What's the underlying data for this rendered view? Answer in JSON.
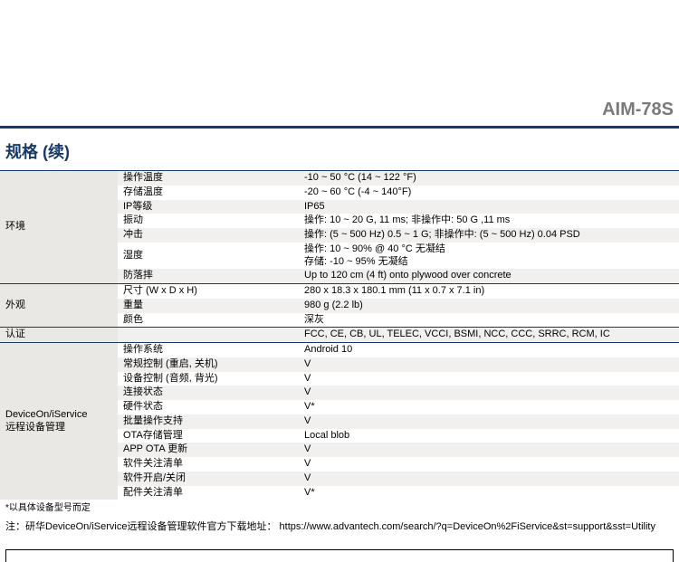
{
  "model_name": "AIM-78S",
  "section_title": "规格 (续)",
  "colors": {
    "accent": "#173a6a",
    "model_text": "#7a7a7a",
    "row_alt_bg": "#f1f0ee",
    "cat_bg": "#e9e8e4"
  },
  "categories": [
    {
      "name": "环境",
      "rows": [
        {
          "label": "操作温度",
          "value": "-10 ~ 50 °C (14 ~ 122 °F)"
        },
        {
          "label": "存储温度",
          "value": "-20 ~ 60 °C (-4 ~ 140°F)"
        },
        {
          "label": "IP等级",
          "value": "IP65"
        },
        {
          "label": "振动",
          "value": "操作: 10 ~ 20 G, 11 ms; 非操作中: 50 G ,11 ms"
        },
        {
          "label": "冲击",
          "value": "操作: (5 ~ 500 Hz) 0.5 ~ 1 G; 非操作中: (5 ~ 500 Hz) 0.04 PSD"
        },
        {
          "label": "湿度",
          "value_lines": [
            "操作: 10 ~ 90% @ 40 °C 无凝结",
            "存储: -10 ~ 95% 无凝结"
          ]
        },
        {
          "label": "防落摔",
          "value": "Up to 120 cm (4 ft) onto plywood over concrete"
        }
      ]
    },
    {
      "name": "外观",
      "rows": [
        {
          "label": "尺寸 (W x D x H)",
          "value": "280 x 18.3 x 180.1 mm (11 x 0.7 x 7.1 in)"
        },
        {
          "label": "重量",
          "value": "980 g (2.2 lb)"
        },
        {
          "label": "颜色",
          "value": "深灰"
        }
      ]
    },
    {
      "name": "认证",
      "rows": [
        {
          "label": "",
          "value": "FCC, CE, CB, UL, TELEC, VCCI, BSMI, NCC, CCC, SRRC, RCM, IC"
        }
      ]
    },
    {
      "name": "DeviceOn/iService\n远程设备管理",
      "rows": [
        {
          "label": "操作系统",
          "value": "Android 10"
        },
        {
          "label": "常规控制 (重启, 关机)",
          "value": "V"
        },
        {
          "label": "设备控制 (音频, 背光)",
          "value": "V"
        },
        {
          "label": "连接状态",
          "value": "V"
        },
        {
          "label": "硬件状态",
          "value": "V*"
        },
        {
          "label": "批量操作支持",
          "value": "V"
        },
        {
          "label": "OTA存储管理",
          "value": "Local blob"
        },
        {
          "label": "APP OTA 更新",
          "value": "V"
        },
        {
          "label": "软件关注清单",
          "value": "V"
        },
        {
          "label": "软件开启/关闭",
          "value": "V"
        },
        {
          "label": "配件关注清单",
          "value": "V*"
        }
      ]
    }
  ],
  "footnote": "*以具体设备型号而定",
  "note_prefix": "注：研华DeviceOn/iService远程设备管理软件官方下载地址：  ",
  "note_url": "https://www.advantech.com/search/?q=DeviceOn%2FiService&st=support&sst=Utility"
}
